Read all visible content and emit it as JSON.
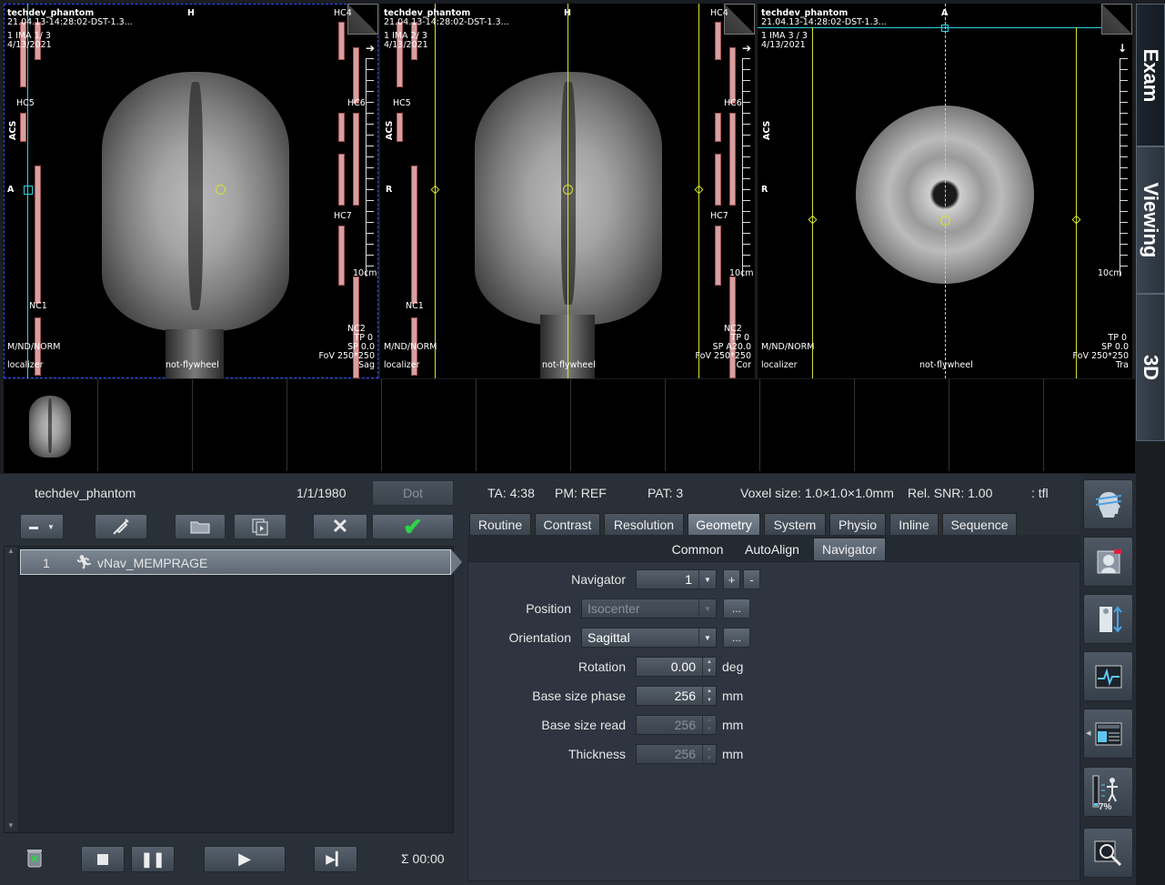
{
  "viewports": [
    {
      "patient": "techdev_phantom",
      "series": "21.04.13-14:28:02-DST-1.3...",
      "ima": "1 IMA 1/ 3",
      "date": "4/13/2021",
      "top": "H",
      "left": "A",
      "side": "ACS",
      "bottom_left": "M/ND/NORM",
      "localizer": "localizer",
      "center_bottom": "not-flywheel",
      "tp": "TP 0",
      "sp": "SP 0.0",
      "fov": "FoV 250*250",
      "orient": "Sag",
      "scale": "10cm",
      "coils": [
        "HC4",
        "HC5",
        "HC6",
        "HC7",
        "NC1",
        "NC2"
      ]
    },
    {
      "patient": "techdev_phantom",
      "series": "21.04.13-14:28:02-DST-1.3...",
      "ima": "1 IMA 2/ 3",
      "date": "4/13/2021",
      "top": "H",
      "left": "R",
      "side": "ACS",
      "bottom_left": "M/ND/NORM",
      "localizer": "localizer",
      "center_bottom": "not-flywheel",
      "tp": "TP 0",
      "sp": "SP A20.0",
      "fov": "FoV 250*250",
      "orient": "Cor",
      "scale": "10cm",
      "coils": [
        "HC4",
        "HC5",
        "HC6",
        "HC7",
        "NC1",
        "NC2"
      ]
    },
    {
      "patient": "techdev_phantom",
      "series": "21.04.13-14:28:02-DST-1.3...",
      "ima": "1 IMA 3 / 3",
      "date": "4/13/2021",
      "top": "A",
      "left": "R",
      "side": "ACS",
      "bottom_left": "M/ND/NORM",
      "localizer": "localizer",
      "center_bottom": "not-flywheel",
      "tp": "TP 0",
      "sp": "SP 0.0",
      "fov": "FoV 250*250",
      "orient": "Tra",
      "scale": "10cm"
    }
  ],
  "side_tabs": {
    "exam": "Exam",
    "viewing": "Viewing",
    "three_d": "3D"
  },
  "header": {
    "patient": "techdev_phantom",
    "dob": "1/1/1980",
    "dot": "Dot",
    "ta": "TA: 4:38",
    "pm": "PM: REF",
    "pat": "PAT: 3",
    "voxel": "Voxel size: 1.0×1.0×1.0mm",
    "snr": "Rel. SNR: 1.00",
    "seq": ": tfl"
  },
  "queue": {
    "items": [
      {
        "num": "1",
        "name": "vNav_MEMPRAGE"
      }
    ],
    "sum_time": "Σ 00:00"
  },
  "tabs": [
    "Routine",
    "Contrast",
    "Resolution",
    "Geometry",
    "System",
    "Physio",
    "Inline",
    "Sequence"
  ],
  "active_tab": "Geometry",
  "subtabs": [
    "Common",
    "AutoAlign",
    "Navigator"
  ],
  "active_subtab": "Navigator",
  "params": {
    "navigator": {
      "label": "Navigator",
      "value": "1",
      "plus": "+",
      "minus": "-"
    },
    "position": {
      "label": "Position",
      "value": "Isocenter",
      "more": "..."
    },
    "orientation": {
      "label": "Orientation",
      "value": "Sagittal",
      "more": "..."
    },
    "rotation": {
      "label": "Rotation",
      "value": "0.00",
      "unit": "deg"
    },
    "base_size_phase": {
      "label": "Base size phase",
      "value": "256",
      "unit": "mm"
    },
    "base_size_read": {
      "label": "Base size read",
      "value": "256",
      "unit": "mm"
    },
    "thickness": {
      "label": "Thickness",
      "value": "256",
      "unit": "mm"
    }
  },
  "progress_label": "7%",
  "colors": {
    "cyan": "#2fd0e0",
    "yellow": "#d8e030",
    "green_check": "#2fd24a",
    "selection": "#2060ff"
  }
}
